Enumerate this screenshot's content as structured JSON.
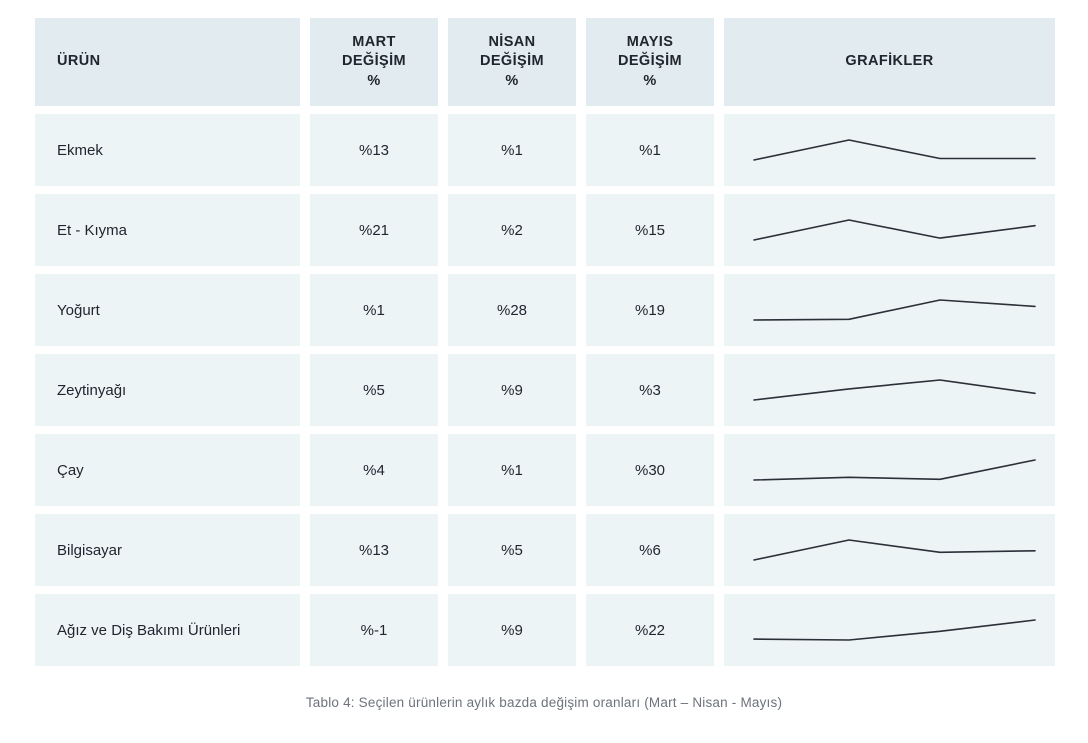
{
  "colors": {
    "header_bg": "#e2ebf0",
    "row_bg": "#edf4f6",
    "text": "#21252f",
    "caption": "#6d737c",
    "sparkline": "#2a2f38"
  },
  "table": {
    "headers": {
      "product": "ÜRÜN",
      "mart": "MART\nDEĞİŞİM\n%",
      "nisan": "NİSAN\nDEĞİŞİM\n%",
      "mayis": "MAYIS\nDEĞİŞİM\n%",
      "graphs": "GRAFİKLER"
    },
    "rows": [
      {
        "product": "Ekmek",
        "mart": "%13",
        "nisan": "%1",
        "mayis": "%1"
      },
      {
        "product": "Et - Kıyma",
        "mart": "%21",
        "nisan": "%2",
        "mayis": "%15"
      },
      {
        "product": "Yoğurt",
        "mart": "%1",
        "nisan": "%28",
        "mayis": "%19"
      },
      {
        "product": "Zeytinyağı",
        "mart": "%5",
        "nisan": "%9",
        "mayis": "%3"
      },
      {
        "product": "Çay",
        "mart": "%4",
        "nisan": "%1",
        "mayis": "%30"
      },
      {
        "product": "Bilgisayar",
        "mart": "%13",
        "nisan": "%5",
        "mayis": "%6"
      },
      {
        "product": "Ağız ve Diş Bakımı Ürünleri",
        "mart": "%-1",
        "nisan": "%9",
        "mayis": "%22"
      }
    ]
  },
  "chart_data": {
    "type": "table",
    "title": "Tablo 4: Seçilen ürünlerin aylık bazda değişim oranları (Mart – Nisan - Mayıs)",
    "columns": [
      "ÜRÜN",
      "MART DEĞİŞİM %",
      "NİSAN DEĞİŞİM %",
      "MAYIS DEĞİŞİM %",
      "GRAFİKLER"
    ],
    "categories": [
      "Mart",
      "Nisan",
      "Mayıs"
    ],
    "series": [
      {
        "name": "Ekmek",
        "values": [
          13,
          1,
          1
        ],
        "sparkline_points": [
          0,
          13,
          1,
          1
        ]
      },
      {
        "name": "Et - Kıyma",
        "values": [
          21,
          2,
          15
        ],
        "sparkline_points": [
          0,
          21,
          2,
          15
        ]
      },
      {
        "name": "Yoğurt",
        "values": [
          1,
          28,
          19
        ],
        "sparkline_points": [
          0,
          1,
          28,
          19
        ]
      },
      {
        "name": "Zeytinyağı",
        "values": [
          5,
          9,
          3
        ],
        "sparkline_points": [
          0,
          5,
          9,
          3
        ]
      },
      {
        "name": "Çay",
        "values": [
          4,
          1,
          30
        ],
        "sparkline_points": [
          0,
          4,
          1,
          30
        ]
      },
      {
        "name": "Bilgisayar",
        "values": [
          13,
          5,
          6
        ],
        "sparkline_points": [
          0,
          13,
          5,
          6
        ]
      },
      {
        "name": "Ağız ve Diş Bakımı Ürünleri",
        "values": [
          -1,
          9,
          22
        ],
        "sparkline_points": [
          0,
          -1,
          9,
          22
        ]
      }
    ],
    "legend": false,
    "grid": false,
    "sparkline_style": "thin dark line, per-row min-max normalized, no axes"
  },
  "caption": "Tablo 4: Seçilen ürünlerin aylık bazda değişim oranları (Mart – Nisan - Mayıs)"
}
